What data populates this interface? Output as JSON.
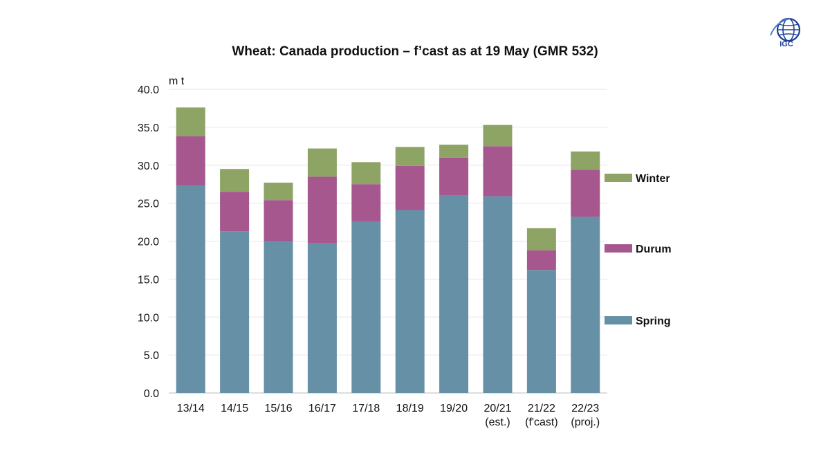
{
  "chart_data": {
    "type": "bar",
    "stacked": true,
    "title": "Wheat: Canada production – f’cast as at 19 May (GMR 532)",
    "ylabel": "m t",
    "xlabel": "",
    "ylim": [
      0,
      40
    ],
    "yticks": [
      "0.0",
      "5.0",
      "10.0",
      "15.0",
      "20.0",
      "25.0",
      "30.0",
      "35.0",
      "40.0"
    ],
    "grid": true,
    "legend_position": "right",
    "categories": [
      [
        "13/14"
      ],
      [
        "14/15"
      ],
      [
        "15/16"
      ],
      [
        "16/17"
      ],
      [
        "17/18"
      ],
      [
        "18/19"
      ],
      [
        "19/20"
      ],
      [
        "20/21",
        "(est.)"
      ],
      [
        "21/22",
        "(f'cast)"
      ],
      [
        "22/23",
        "(proj.)"
      ]
    ],
    "series": [
      {
        "name": "Spring",
        "color": "#6690a6",
        "values": [
          27.3,
          21.3,
          20.0,
          19.7,
          22.6,
          24.1,
          26.0,
          25.9,
          16.2,
          23.2
        ]
      },
      {
        "name": "Durum",
        "color": "#a5578e",
        "values": [
          6.5,
          5.2,
          5.4,
          8.8,
          4.9,
          5.8,
          5.0,
          6.6,
          2.6,
          6.2
        ]
      },
      {
        "name": "Winter",
        "color": "#8da465",
        "values": [
          3.8,
          3.0,
          2.3,
          3.7,
          2.9,
          2.5,
          1.7,
          2.8,
          2.9,
          2.4
        ]
      }
    ]
  },
  "logo": {
    "text": "IGC",
    "color": "#1a3f95"
  }
}
